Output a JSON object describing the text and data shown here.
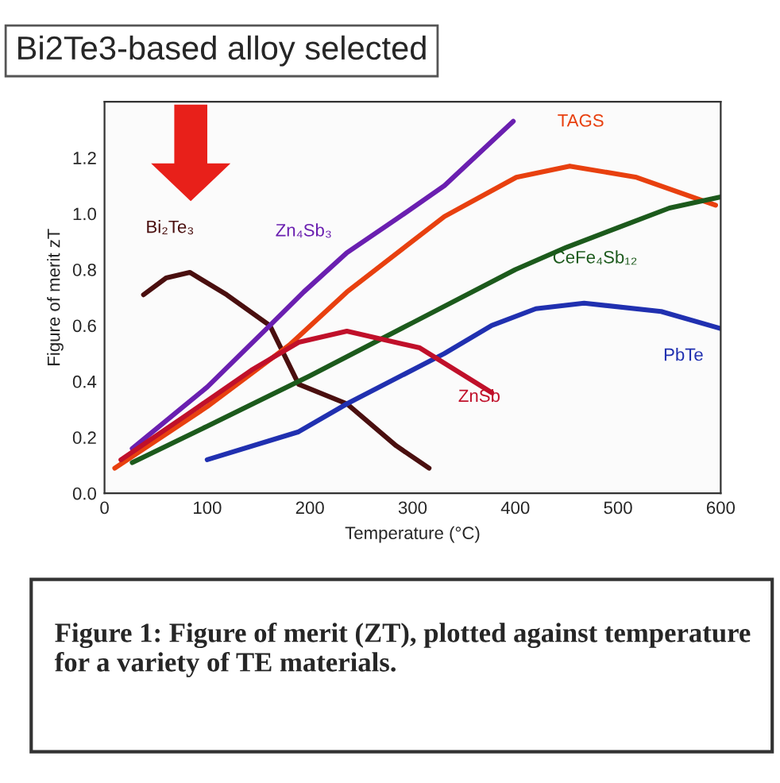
{
  "chart_data": {
    "type": "line",
    "title": "Bi2Te3-based alloy selected",
    "xlabel": "Temperature (°C)",
    "ylabel": "Figure of merit zT",
    "annotations": [
      "Figure 1: Figure of merit (ZT), plotted against temperature for a variety of TE materials."
    ],
    "xlim": [
      0,
      600
    ],
    "xticks": [
      0,
      100,
      200,
      300,
      400,
      500,
      600
    ],
    "ylim": [
      0,
      1.4
    ],
    "yticks": [
      {
        "value": 0,
        "label": "0.0"
      },
      0.2,
      0.4,
      0.6,
      0.8,
      {
        "value": 1,
        "label": "1.0"
      },
      1.2
    ],
    "grid": false,
    "line_style": "solid",
    "marker": "none",
    "series": [
      {
        "name": "Bi₂Te₃",
        "color": "#4a0f0f",
        "x": [
          38,
          60,
          83,
          119,
          161,
          189,
          236,
          284,
          316
        ],
        "values": [
          0.71,
          0.77,
          0.79,
          0.71,
          0.6,
          0.39,
          0.32,
          0.17,
          0.09
        ]
      },
      {
        "name": "Zn₄Sb₃",
        "color": "#6a1fb0",
        "x": [
          27,
          100,
          161,
          194,
          236,
          284,
          331,
          398
        ],
        "values": [
          0.16,
          0.38,
          0.6,
          0.72,
          0.86,
          0.98,
          1.1,
          1.33
        ]
      },
      {
        "name": "TAGS",
        "color": "#e8400f",
        "x": [
          10,
          100,
          180,
          236,
          331,
          401,
          453,
          518,
          595
        ],
        "values": [
          0.09,
          0.31,
          0.53,
          0.72,
          0.99,
          1.13,
          1.17,
          1.13,
          1.03
        ]
      },
      {
        "name": "CeFe₄Sb₁₂",
        "color": "#1c5a1c",
        "x": [
          27,
          100,
          200,
          300,
          400,
          450,
          500,
          550,
          600
        ],
        "values": [
          0.11,
          0.24,
          0.42,
          0.61,
          0.8,
          0.88,
          0.95,
          1.02,
          1.06
        ]
      },
      {
        "name": "PbTe",
        "color": "#2030b0",
        "x": [
          100,
          189,
          236,
          331,
          377,
          420,
          467,
          542,
          599
        ],
        "values": [
          0.12,
          0.22,
          0.32,
          0.5,
          0.6,
          0.66,
          0.68,
          0.65,
          0.59
        ]
      },
      {
        "name": "ZnSb",
        "color": "#c0102a",
        "x": [
          16,
          80,
          143,
          189,
          236,
          307,
          377
        ],
        "values": [
          0.12,
          0.28,
          0.44,
          0.54,
          0.58,
          0.52,
          0.36
        ]
      }
    ]
  }
}
